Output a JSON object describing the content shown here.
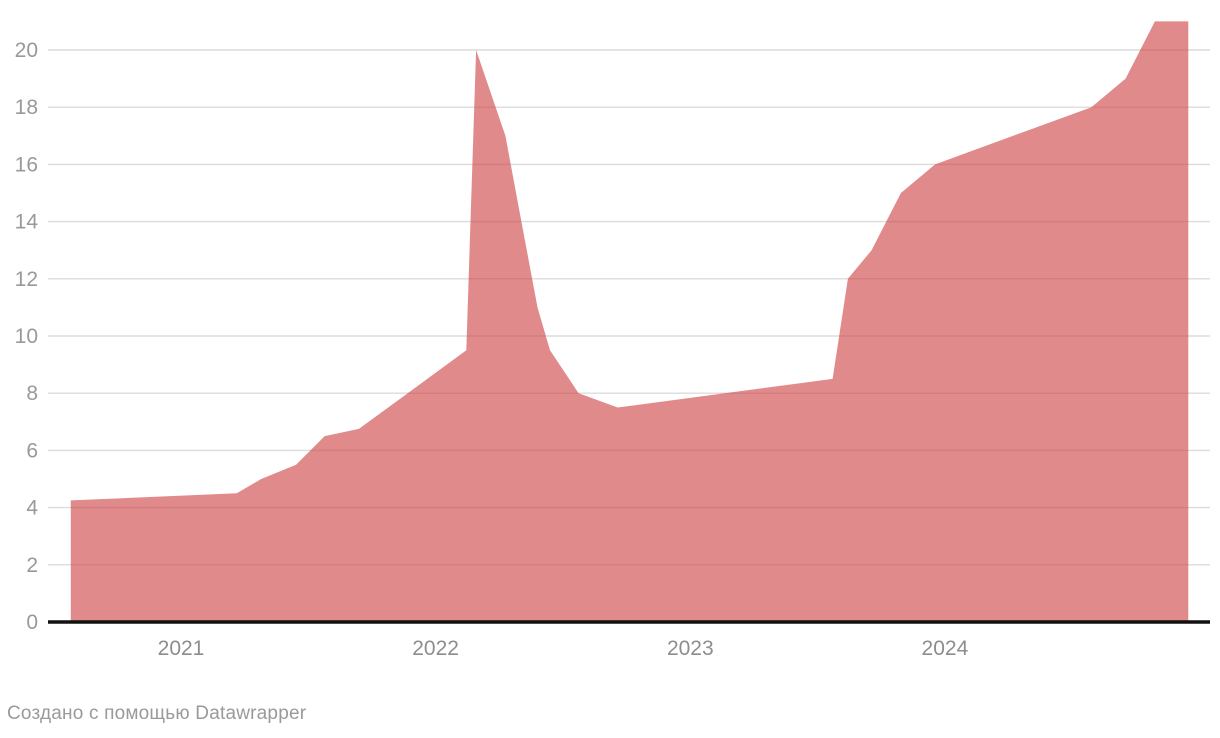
{
  "chart": {
    "footer_text": "Создано с помощью Datawrapper",
    "colors": {
      "background": "#ffffff",
      "area_fill": "#ce4547",
      "area_opacity": 0.63,
      "gridline": "#dcdcdc",
      "baseline": "#111111",
      "y_tick_label": "#999999",
      "x_tick_label": "#8d8d8d",
      "footer_text": "#9a9a9a"
    }
  },
  "chart_data": {
    "type": "area",
    "title": "",
    "xlabel": "",
    "ylabel": "",
    "grid": "horizontal",
    "legend": "none",
    "ylim": [
      0,
      21.7
    ],
    "y_ticks": [
      0,
      2,
      4,
      6,
      8,
      10,
      12,
      14,
      16,
      18,
      20
    ],
    "x_year_labels": [
      "2021",
      "2022",
      "2023",
      "2024"
    ],
    "x_range": [
      "2020-07-27",
      "2024-12-15"
    ],
    "points": [
      {
        "date": "2020-07-27",
        "value": 4.25
      },
      {
        "date": "2021-03-22",
        "value": 4.5
      },
      {
        "date": "2021-04-26",
        "value": 5.0
      },
      {
        "date": "2021-06-15",
        "value": 5.5
      },
      {
        "date": "2021-07-26",
        "value": 6.5
      },
      {
        "date": "2021-09-13",
        "value": 6.75
      },
      {
        "date": "2021-10-25",
        "value": 7.5
      },
      {
        "date": "2021-12-20",
        "value": 8.5
      },
      {
        "date": "2022-02-14",
        "value": 9.5
      },
      {
        "date": "2022-02-28",
        "value": 20
      },
      {
        "date": "2022-04-11",
        "value": 17
      },
      {
        "date": "2022-05-04",
        "value": 14
      },
      {
        "date": "2022-05-27",
        "value": 11
      },
      {
        "date": "2022-06-14",
        "value": 9.5
      },
      {
        "date": "2022-07-25",
        "value": 8.0
      },
      {
        "date": "2022-09-19",
        "value": 7.5
      },
      {
        "date": "2023-07-24",
        "value": 8.5
      },
      {
        "date": "2023-08-15",
        "value": 12
      },
      {
        "date": "2023-09-18",
        "value": 13
      },
      {
        "date": "2023-10-30",
        "value": 15
      },
      {
        "date": "2023-12-18",
        "value": 16
      },
      {
        "date": "2024-07-29",
        "value": 18
      },
      {
        "date": "2024-09-16",
        "value": 19
      },
      {
        "date": "2024-10-28",
        "value": 21
      },
      {
        "date": "2024-12-15",
        "value": 21
      }
    ]
  }
}
